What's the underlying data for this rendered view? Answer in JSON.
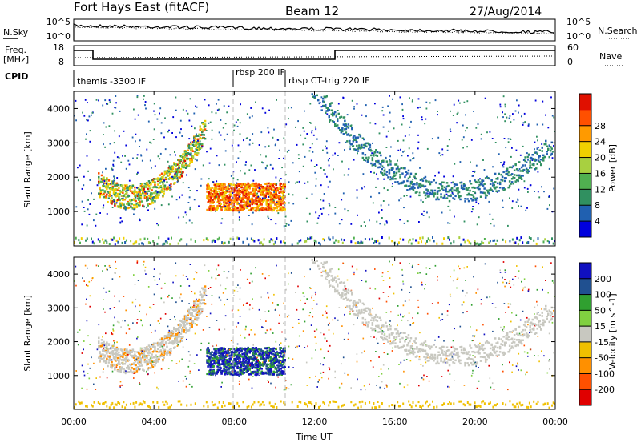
{
  "header": {
    "station": "Fort Hays East (fitACF)",
    "beam": "Beam 12",
    "date": "27/Aug/2014"
  },
  "noise_panel": {
    "left_label": "N.Sky",
    "right_label": "N.Search",
    "left_ticks": [
      "10^5",
      "10^0"
    ],
    "right_ticks": [
      "10^5",
      "10^0"
    ]
  },
  "freq_panel": {
    "left_label_line1": "Freq.",
    "left_label_line2": "[MHz]",
    "left_ticks": [
      "18",
      "8"
    ],
    "right_label": "Nave",
    "right_ticks": [
      "60",
      "0"
    ]
  },
  "cpid": {
    "label": "CPID",
    "segments": [
      "themis -3300 IF",
      "rbsp 200 IF",
      "rbsp CT-trig 220 IF"
    ]
  },
  "colors": {
    "power": [
      "#0000dd",
      "#2060b0",
      "#309060",
      "#50b050",
      "#a8d040",
      "#f0d000",
      "#ff9a00",
      "#ff5000",
      "#e01000"
    ],
    "velocity": [
      "#e00000",
      "#ff5000",
      "#ff9000",
      "#f0c000",
      "#c8c8c0",
      "#80d040",
      "#30a030",
      "#205090",
      "#1010c0"
    ]
  },
  "chart_data": [
    {
      "type": "heatmap",
      "name": "power",
      "ylabel": "Slant Range [km]",
      "ylim": [
        0,
        4500
      ],
      "yticks": [
        "1000",
        "2000",
        "3000",
        "4000"
      ],
      "colorbar_label": "Power [dB]",
      "colorbar_ticks": [
        "4",
        "8",
        "12",
        "16",
        "20",
        "24",
        "28"
      ],
      "colorbar_range": [
        0,
        30
      ]
    },
    {
      "type": "heatmap",
      "name": "velocity",
      "ylabel": "Slant Range [km]",
      "ylim": [
        0,
        4500
      ],
      "yticks": [
        "1000",
        "2000",
        "3000",
        "4000"
      ],
      "colorbar_label": "Velocity [m s^-1]",
      "colorbar_ticks": [
        "200",
        "100",
        "50",
        "15",
        "-15",
        "-50",
        "-100",
        "-200"
      ]
    }
  ],
  "x_axis": {
    "label": "Time UT",
    "ticks": [
      "00:00",
      "04:00",
      "08:00",
      "12:00",
      "16:00",
      "20:00",
      "00:00"
    ]
  }
}
